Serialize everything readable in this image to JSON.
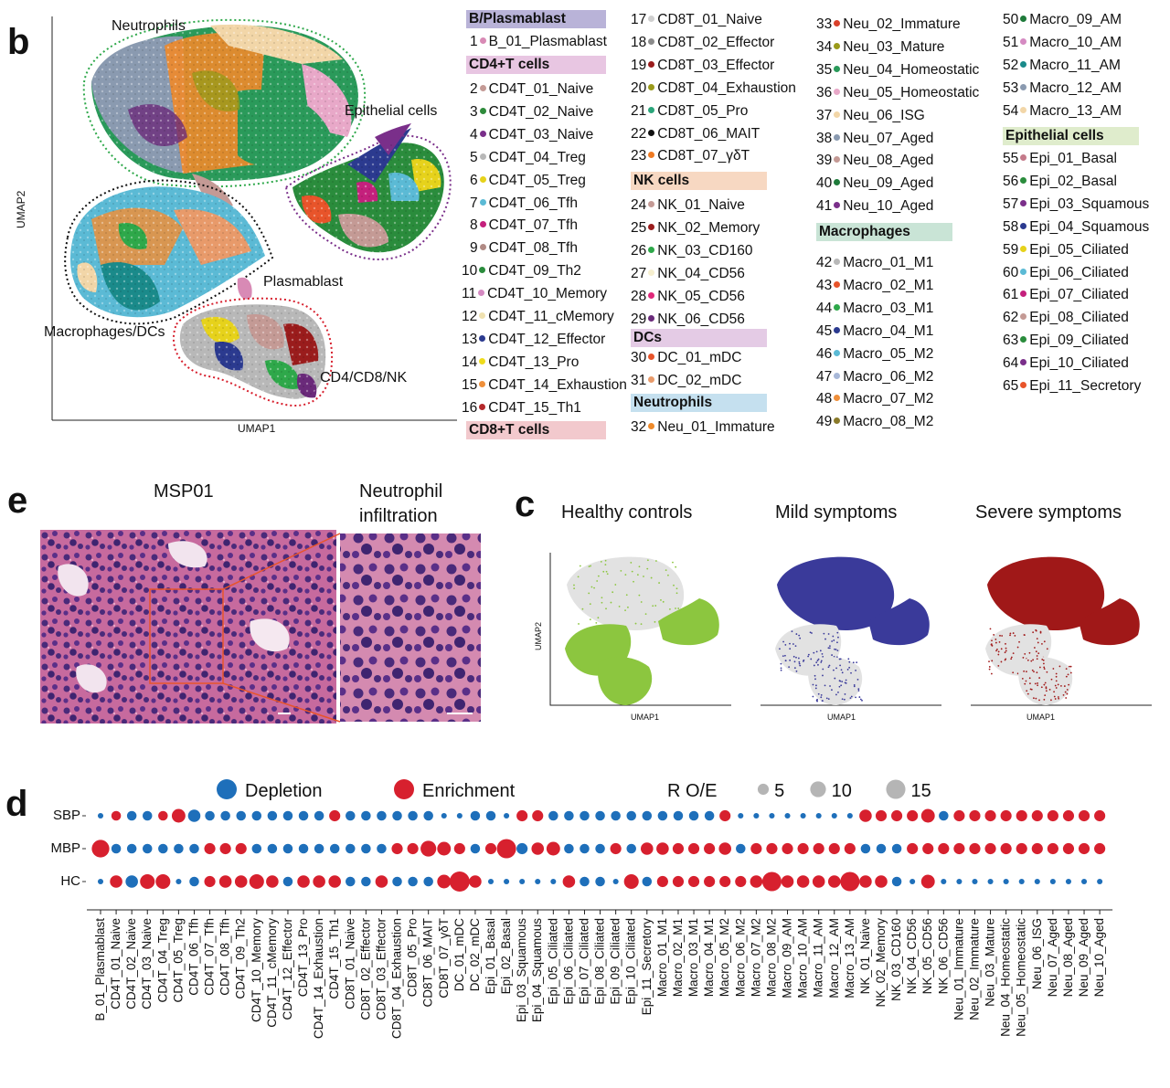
{
  "panels": {
    "b": "b",
    "e": "e",
    "c": "c",
    "d": "d"
  },
  "umap_b": {
    "xlabel": "UMAP1",
    "ylabel": "UMAP2",
    "annotations": {
      "neutrophils": "Neutrophils",
      "epithelial": "Epithelial cells",
      "plasmablast": "Plasmablast",
      "macrophages": "Macrophages/DCs",
      "cd4cd8nk": "CD4/CD8/NK"
    }
  },
  "legend": {
    "groups": [
      {
        "title": "B/Plasmablast",
        "color": "#b9b3d8"
      },
      {
        "title": "CD4+T cells",
        "color": "#e8c6e2"
      },
      {
        "title": "CD8+T cells",
        "color": "#f2c9cd"
      },
      {
        "title": "NK cells",
        "color": "#f7d8c2"
      },
      {
        "title": "DCs",
        "color": "#e4cbe5"
      },
      {
        "title": "Neutrophils",
        "color": "#c5e0ef"
      },
      {
        "title": "Macrophages",
        "color": "#c9e4d6"
      },
      {
        "title": "Epithelial cells",
        "color": "#dfeccc"
      }
    ],
    "items": [
      {
        "num": "1",
        "label": "B_01_Plasmablast",
        "color": "#d88ab5"
      },
      {
        "num": "2",
        "label": "CD4T_01_Naive",
        "color": "#c49a95"
      },
      {
        "num": "3",
        "label": "CD4T_02_Naive",
        "color": "#2e8b3b"
      },
      {
        "num": "4",
        "label": "CD4T_03_Naive",
        "color": "#7a2f8a"
      },
      {
        "num": "5",
        "label": "CD4T_04_Treg",
        "color": "#b8b8b8"
      },
      {
        "num": "6",
        "label": "CD4T_05_Treg",
        "color": "#e6d21b"
      },
      {
        "num": "7",
        "label": "CD4T_06_Tfh",
        "color": "#5bbad5"
      },
      {
        "num": "8",
        "label": "CD4T_07_Tfh",
        "color": "#c4207c"
      },
      {
        "num": "9",
        "label": "CD4T_08_Tfh",
        "color": "#b08a84"
      },
      {
        "num": "10",
        "label": "CD4T_09_Th2",
        "color": "#2a8c3c"
      },
      {
        "num": "11",
        "label": "CD4T_10_Memory",
        "color": "#d58ac2"
      },
      {
        "num": "12",
        "label": "CD4T_11_cMemory",
        "color": "#efe1b0"
      },
      {
        "num": "13",
        "label": "CD4T_12_Effector",
        "color": "#2b3a8f"
      },
      {
        "num": "14",
        "label": "CD4T_13_Pro",
        "color": "#efdc1c"
      },
      {
        "num": "15",
        "label": "CD4T_14_Exhaustion",
        "color": "#ef8f3a"
      },
      {
        "num": "16",
        "label": "CD4T_15_Th1",
        "color": "#b4282a"
      },
      {
        "num": "17",
        "label": "CD8T_01_Naive",
        "color": "#cfcfcf"
      },
      {
        "num": "18",
        "label": "CD8T_02_Effector",
        "color": "#8a8a8a"
      },
      {
        "num": "19",
        "label": "CD8T_03_Effector",
        "color": "#9a1c1c"
      },
      {
        "num": "20",
        "label": "CD8T_04_Exhaustion",
        "color": "#9a9a1a"
      },
      {
        "num": "21",
        "label": "CD8T_05_Pro",
        "color": "#2aa57a"
      },
      {
        "num": "22",
        "label": "CD8T_06_MAIT",
        "color": "#111111"
      },
      {
        "num": "23",
        "label": "CD8T_07_γδT",
        "color": "#ef7a22"
      },
      {
        "num": "24",
        "label": "NK_01_Naive",
        "color": "#c49a95"
      },
      {
        "num": "25",
        "label": "NK_02_Memory",
        "color": "#9a1c1c"
      },
      {
        "num": "26",
        "label": "NK_03_CD160",
        "color": "#2ea84a"
      },
      {
        "num": "27",
        "label": "NK_04_CD56",
        "color": "#f6efcf"
      },
      {
        "num": "28",
        "label": "NK_05_CD56",
        "color": "#e0287a"
      },
      {
        "num": "29",
        "label": "NK_06_CD56",
        "color": "#6a2a7a"
      },
      {
        "num": "30",
        "label": "DC_01_mDC",
        "color": "#e8542a"
      },
      {
        "num": "31",
        "label": "DC_02_mDC",
        "color": "#e89a6a"
      },
      {
        "num": "32",
        "label": "Neu_01_Immature",
        "color": "#ef8a2a"
      },
      {
        "num": "33",
        "label": "Neu_02_Immature",
        "color": "#d9402a"
      },
      {
        "num": "34",
        "label": "Neu_03_Mature",
        "color": "#9a9a1a"
      },
      {
        "num": "35",
        "label": "Neu_04_Homeostatic",
        "color": "#2a9a5a"
      },
      {
        "num": "36",
        "label": "Neu_05_Homeostatic",
        "color": "#e8a8c8"
      },
      {
        "num": "37",
        "label": "Neu_06_ISG",
        "color": "#f2d6a8"
      },
      {
        "num": "38",
        "label": "Neu_07_Aged",
        "color": "#8a9ab0"
      },
      {
        "num": "39",
        "label": "Neu_08_Aged",
        "color": "#c49a95"
      },
      {
        "num": "40",
        "label": "Neu_09_Aged",
        "color": "#1e7a3a"
      },
      {
        "num": "41",
        "label": "Neu_10_Aged",
        "color": "#7a2f8a"
      },
      {
        "num": "42",
        "label": "Macro_01_M1",
        "color": "#b8b8b8"
      },
      {
        "num": "43",
        "label": "Macro_02_M1",
        "color": "#e8542a"
      },
      {
        "num": "44",
        "label": "Macro_03_M1",
        "color": "#2ea84a"
      },
      {
        "num": "45",
        "label": "Macro_04_M1",
        "color": "#2b3a8f"
      },
      {
        "num": "46",
        "label": "Macro_05_M2",
        "color": "#5bbad5"
      },
      {
        "num": "47",
        "label": "Macro_06_M2",
        "color": "#a8b8d8"
      },
      {
        "num": "48",
        "label": "Macro_07_M2",
        "color": "#ef8f3a"
      },
      {
        "num": "49",
        "label": "Macro_08_M2",
        "color": "#8a7a2a"
      },
      {
        "num": "50",
        "label": "Macro_09_AM",
        "color": "#1e7a3a"
      },
      {
        "num": "51",
        "label": "Macro_10_AM",
        "color": "#d58ac2"
      },
      {
        "num": "52",
        "label": "Macro_11_AM",
        "color": "#1a8a8a"
      },
      {
        "num": "53",
        "label": "Macro_12_AM",
        "color": "#8a9ab0"
      },
      {
        "num": "54",
        "label": "Macro_13_AM",
        "color": "#f2d6a8"
      },
      {
        "num": "55",
        "label": "Epi_01_Basal",
        "color": "#c47a8a"
      },
      {
        "num": "56",
        "label": "Epi_02_Basal",
        "color": "#2a8c3c"
      },
      {
        "num": "57",
        "label": "Epi_03_Squamous",
        "color": "#7a2f8a"
      },
      {
        "num": "58",
        "label": "Epi_04_Squamous",
        "color": "#2b3a8f"
      },
      {
        "num": "59",
        "label": "Epi_05_Ciliated",
        "color": "#e6d21b"
      },
      {
        "num": "60",
        "label": "Epi_06_Ciliated",
        "color": "#5bbad5"
      },
      {
        "num": "61",
        "label": "Epi_07_Ciliated",
        "color": "#c4207c"
      },
      {
        "num": "62",
        "label": "Epi_08_Ciliated",
        "color": "#c49a95"
      },
      {
        "num": "63",
        "label": "Epi_09_Ciliated",
        "color": "#2a8c3c"
      },
      {
        "num": "64",
        "label": "Epi_10_Ciliated",
        "color": "#7a2f8a"
      },
      {
        "num": "65",
        "label": "Epi_11_Secretory",
        "color": "#e8542a"
      }
    ]
  },
  "histology": {
    "title": "MSP01",
    "zoom_title_line1": "Neutrophil",
    "zoom_title_line2": "infiltration"
  },
  "umap_c": {
    "panels": [
      {
        "title": "Healthy controls",
        "color": "#8cc63f"
      },
      {
        "title": "Mild symptoms",
        "color": "#3a3a9a"
      },
      {
        "title": "Severe symptoms",
        "color": "#a01818"
      }
    ],
    "xlabel": "UMAP1",
    "ylabel": "UMAP2"
  },
  "chart_data": {
    "type": "scatter",
    "title": "",
    "legend": {
      "depletion": "Depletion",
      "enrichment": "Enrichment",
      "size_title": "R O/E",
      "size_values": [
        "5",
        "10",
        "15"
      ]
    },
    "colors": {
      "depletion": "#1e6fba",
      "enrichment": "#d7202e"
    },
    "rows": [
      "SBP",
      "MBP",
      "HC"
    ],
    "categories": [
      "B_01_Plasmablast",
      "CD4T_01_Naive",
      "CD4T_02_Naive",
      "CD4T_03_Naive",
      "CD4T_04_Treg",
      "CD4T_05_Treg",
      "CD4T_06_Tfh",
      "CD4T_07_Tfh",
      "CD4T_08_Tfh",
      "CD4T_09_Th2",
      "CD4T_10_Memory",
      "CD4T_11_cMemory",
      "CD4T_12_Effector",
      "CD4T_13_Pro",
      "CD4T_14_Exhaustion",
      "CD4T_15_Th1",
      "CD8T_01_Naive",
      "CD8T_02_Effector",
      "CD8T_03_Effector",
      "CD8T_04_Exhaustion",
      "CD8T_05_Pro",
      "CD8T_06_MAIT",
      "CD8T_07_γδT",
      "DC_01_mDC",
      "DC_02_mDC",
      "Epi_01_Basal",
      "Epi_02_Basal",
      "Epi_03_Squamous",
      "Epi_04_Squamous",
      "Epi_05_Ciliated",
      "Epi_06_Ciliated",
      "Epi_07_Ciliated",
      "Epi_08_Ciliated",
      "Epi_09_Ciliated",
      "Epi_10_Ciliated",
      "Epi_11_Secretory",
      "Macro_01_M1",
      "Macro_02_M1",
      "Macro_03_M1",
      "Macro_04_M1",
      "Macro_05_M2",
      "Macro_06_M2",
      "Macro_07_M2",
      "Macro_08_M2",
      "Macro_09_AM",
      "Macro_10_AM",
      "Macro_11_AM",
      "Macro_12_AM",
      "Macro_13_AM",
      "NK_01_Naive",
      "NK_02_Memory",
      "NK_03_CD160",
      "NK_04_CD56",
      "NK_05_CD56",
      "NK_06_CD56",
      "Neu_01_Immature",
      "Neu_02_Immature",
      "Neu_03_Mature",
      "Neu_04_Homeostatic",
      "Neu_05_Homeostatic",
      "Neu_06_ISG",
      "Neu_07_Aged",
      "Neu_08_Aged",
      "Neu_09_Aged",
      "Neu_10_Aged"
    ],
    "series": [
      {
        "name": "SBP",
        "direction": [
          "d",
          "e",
          "d",
          "d",
          "e",
          "e",
          "d",
          "d",
          "d",
          "d",
          "d",
          "d",
          "d",
          "d",
          "d",
          "e",
          "d",
          "d",
          "d",
          "d",
          "d",
          "d",
          "d",
          "d",
          "d",
          "d",
          "d",
          "e",
          "e",
          "d",
          "d",
          "d",
          "d",
          "d",
          "d",
          "d",
          "d",
          "d",
          "d",
          "d",
          "e",
          "d",
          "d",
          "d",
          "d",
          "d",
          "d",
          "d",
          "d",
          "e",
          "e",
          "e",
          "e",
          "e",
          "d",
          "e",
          "e",
          "e",
          "e",
          "e",
          "e",
          "e",
          "e",
          "e",
          "e"
        ],
        "values": [
          1,
          3,
          3,
          3,
          3,
          6,
          5,
          3,
          3,
          3,
          3,
          3,
          3,
          3,
          3,
          4,
          3,
          3,
          3,
          3,
          3,
          3,
          1,
          1,
          3,
          3,
          1,
          4,
          4,
          3,
          3,
          3,
          3,
          3,
          3,
          3,
          3,
          3,
          3,
          3,
          4,
          1,
          1,
          1,
          1,
          1,
          1,
          1,
          1,
          5,
          4,
          4,
          4,
          6,
          3,
          4,
          4,
          4,
          4,
          4,
          4,
          4,
          4,
          4,
          4
        ]
      },
      {
        "name": "MBP",
        "direction": [
          "e",
          "d",
          "d",
          "d",
          "d",
          "d",
          "d",
          "e",
          "e",
          "e",
          "d",
          "d",
          "d",
          "d",
          "d",
          "d",
          "d",
          "d",
          "d",
          "e",
          "e",
          "e",
          "e",
          "e",
          "d",
          "e",
          "e",
          "d",
          "e",
          "e",
          "d",
          "d",
          "d",
          "e",
          "d",
          "e",
          "e",
          "e",
          "e",
          "e",
          "e",
          "d",
          "e",
          "e",
          "e",
          "e",
          "e",
          "e",
          "e",
          "d",
          "d",
          "d",
          "e",
          "e",
          "e",
          "e",
          "e",
          "e",
          "e",
          "e",
          "e",
          "e",
          "e",
          "e",
          "e"
        ],
        "values": [
          10,
          3,
          3,
          3,
          3,
          3,
          3,
          4,
          4,
          4,
          3,
          3,
          3,
          3,
          3,
          3,
          3,
          3,
          3,
          4,
          4,
          8,
          6,
          4,
          3,
          4,
          12,
          4,
          5,
          6,
          3,
          3,
          3,
          4,
          3,
          5,
          5,
          4,
          4,
          4,
          5,
          3,
          4,
          4,
          4,
          4,
          4,
          4,
          4,
          3,
          3,
          3,
          4,
          4,
          4,
          4,
          4,
          4,
          4,
          4,
          4,
          4,
          4,
          4,
          4
        ]
      },
      {
        "name": "HC",
        "direction": [
          "d",
          "e",
          "d",
          "e",
          "e",
          "d",
          "d",
          "e",
          "e",
          "e",
          "e",
          "e",
          "d",
          "e",
          "e",
          "e",
          "d",
          "d",
          "e",
          "d",
          "d",
          "d",
          "e",
          "e",
          "e",
          "d",
          "d",
          "d",
          "d",
          "d",
          "e",
          "d",
          "d",
          "d",
          "e",
          "d",
          "e",
          "e",
          "e",
          "e",
          "e",
          "e",
          "e",
          "e",
          "e",
          "e",
          "e",
          "e",
          "e",
          "e",
          "e",
          "d",
          "d",
          "e",
          "d",
          "d",
          "d",
          "d",
          "d",
          "d",
          "d",
          "d",
          "d",
          "d",
          "d"
        ],
        "values": [
          1,
          5,
          5,
          7,
          7,
          1,
          3,
          4,
          5,
          5,
          7,
          5,
          3,
          5,
          5,
          5,
          3,
          3,
          5,
          3,
          3,
          3,
          6,
          13,
          5,
          1,
          1,
          1,
          1,
          1,
          5,
          3,
          3,
          1,
          7,
          3,
          4,
          4,
          4,
          4,
          4,
          4,
          5,
          12,
          5,
          5,
          5,
          5,
          12,
          5,
          5,
          3,
          1,
          6,
          1,
          1,
          1,
          1,
          1,
          1,
          1,
          1,
          1,
          1,
          1
        ]
      }
    ]
  }
}
